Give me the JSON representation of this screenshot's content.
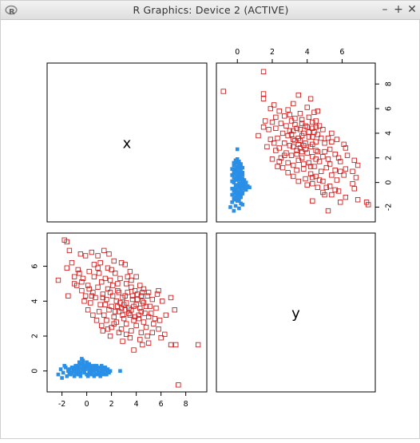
{
  "window": {
    "title": "R Graphics: Device 2 (ACTIVE)",
    "controls": {
      "minimize": "–",
      "maximize": "+",
      "close": "✕"
    },
    "icon": "r-logo-icon"
  },
  "chart_data": {
    "type": "scatter",
    "layout": "pairs",
    "variables": [
      "x",
      "y"
    ],
    "x_axis": {
      "range": [
        -3.2,
        9.7
      ],
      "ticks": [
        -2,
        0,
        2,
        4,
        6,
        8
      ],
      "tick_labels": [
        "-2",
        "0",
        "2",
        "4",
        "6",
        "8"
      ]
    },
    "y_axis": {
      "range": [
        -1.2,
        7.9
      ],
      "ticks": [
        0,
        2,
        4,
        6
      ],
      "tick_labels": [
        "0",
        "2",
        "4",
        "6"
      ]
    },
    "top_axis": {
      "range": [
        -1.2,
        7.9
      ],
      "ticks": [
        0,
        2,
        4,
        6
      ],
      "tick_labels": [
        "0",
        "2",
        "4",
        "6"
      ]
    },
    "right_axis": {
      "range": [
        -3.2,
        9.7
      ],
      "ticks": [
        -2,
        0,
        2,
        4,
        6,
        8
      ],
      "tick_labels": [
        "-2",
        "0",
        "2",
        "4",
        "6",
        "8"
      ]
    },
    "series": [
      {
        "marker": "open-square",
        "color": "#d22020",
        "points": [
          [
            -1.8,
            7.5
          ],
          [
            -1.6,
            7.4
          ],
          [
            -1.4,
            6.9
          ],
          [
            -2.3,
            5.2
          ],
          [
            -1.2,
            6.2
          ],
          [
            -1.6,
            5.9
          ],
          [
            -0.5,
            6.7
          ],
          [
            -0.1,
            6.6
          ],
          [
            0.4,
            6.8
          ],
          [
            0.9,
            6.6
          ],
          [
            1.4,
            6.9
          ],
          [
            1.8,
            6.7
          ],
          [
            2.2,
            6.3
          ],
          [
            2.8,
            6.2
          ],
          [
            3.1,
            6.1
          ],
          [
            3.5,
            5.7
          ],
          [
            -1.0,
            5.4
          ],
          [
            -0.6,
            5.6
          ],
          [
            -0.3,
            5.3
          ],
          [
            0.2,
            5.7
          ],
          [
            0.6,
            5.4
          ],
          [
            1.0,
            5.6
          ],
          [
            1.5,
            5.3
          ],
          [
            1.9,
            5.2
          ],
          [
            2.3,
            5.6
          ],
          [
            2.7,
            5.3
          ],
          [
            3.2,
            5.0
          ],
          [
            3.6,
            5.2
          ],
          [
            4.0,
            5.4
          ],
          [
            4.3,
            4.9
          ],
          [
            -0.8,
            4.9
          ],
          [
            -0.4,
            4.6
          ],
          [
            0.1,
            4.9
          ],
          [
            0.5,
            4.5
          ],
          [
            0.9,
            4.8
          ],
          [
            1.3,
            4.4
          ],
          [
            1.7,
            4.7
          ],
          [
            2.1,
            4.3
          ],
          [
            2.5,
            4.6
          ],
          [
            2.9,
            4.2
          ],
          [
            3.3,
            4.5
          ],
          [
            3.7,
            4.1
          ],
          [
            4.1,
            4.4
          ],
          [
            4.5,
            4.0
          ],
          [
            4.9,
            4.3
          ],
          [
            5.3,
            4.1
          ],
          [
            5.7,
            4.4
          ],
          [
            6.1,
            4.0
          ],
          [
            -1.5,
            4.3
          ],
          [
            -0.2,
            4.0
          ],
          [
            0.3,
            3.9
          ],
          [
            0.7,
            4.2
          ],
          [
            1.1,
            3.8
          ],
          [
            1.6,
            4.1
          ],
          [
            2.0,
            3.7
          ],
          [
            2.4,
            4.0
          ],
          [
            2.8,
            3.6
          ],
          [
            3.2,
            3.9
          ],
          [
            3.6,
            3.5
          ],
          [
            4.0,
            3.8
          ],
          [
            4.4,
            3.4
          ],
          [
            4.8,
            3.7
          ],
          [
            5.2,
            3.3
          ],
          [
            5.6,
            3.6
          ],
          [
            1.0,
            3.4
          ],
          [
            1.4,
            3.2
          ],
          [
            1.8,
            3.5
          ],
          [
            2.2,
            3.1
          ],
          [
            2.6,
            3.4
          ],
          [
            3.0,
            3.0
          ],
          [
            3.4,
            3.3
          ],
          [
            3.8,
            2.9
          ],
          [
            4.2,
            3.2
          ],
          [
            4.6,
            2.8
          ],
          [
            5.0,
            3.1
          ],
          [
            5.4,
            2.7
          ],
          [
            0.8,
            2.9
          ],
          [
            1.2,
            2.6
          ],
          [
            1.6,
            2.9
          ],
          [
            2.0,
            2.5
          ],
          [
            2.4,
            2.8
          ],
          [
            2.8,
            2.4
          ],
          [
            3.2,
            2.7
          ],
          [
            3.6,
            2.3
          ],
          [
            4.0,
            2.6
          ],
          [
            4.4,
            2.2
          ],
          [
            4.8,
            2.5
          ],
          [
            5.3,
            2.2
          ],
          [
            5.8,
            2.4
          ],
          [
            6.3,
            2.1
          ],
          [
            1.3,
            2.3
          ],
          [
            1.9,
            2.0
          ],
          [
            2.6,
            2.2
          ],
          [
            3.5,
            1.9
          ],
          [
            4.3,
            1.8
          ],
          [
            5.0,
            1.6
          ],
          [
            6.0,
            1.9
          ],
          [
            6.8,
            1.5
          ],
          [
            7.2,
            1.5
          ],
          [
            3.8,
            1.2
          ],
          [
            4.5,
            1.5
          ],
          [
            2.9,
            1.7
          ],
          [
            9.0,
            1.5
          ],
          [
            7.4,
            -0.8
          ],
          [
            0.1,
            3.5
          ],
          [
            0.5,
            3.2
          ],
          [
            -0.1,
            4.3
          ],
          [
            1.2,
            5.1
          ],
          [
            2.5,
            5.0
          ],
          [
            3.9,
            4.6
          ],
          [
            4.6,
            4.7
          ],
          [
            5.0,
            4.5
          ],
          [
            3.4,
            3.6
          ],
          [
            3.0,
            3.8
          ],
          [
            2.7,
            3.9
          ],
          [
            3.8,
            3.7
          ],
          [
            4.3,
            3.6
          ],
          [
            2.1,
            4.9
          ],
          [
            1.7,
            5.9
          ],
          [
            0.6,
            6.1
          ],
          [
            -0.7,
            5.8
          ],
          [
            3.1,
            4.3
          ],
          [
            4.7,
            3.3
          ],
          [
            5.5,
            3.0
          ],
          [
            6.4,
            3.2
          ],
          [
            5.9,
            2.9
          ],
          [
            2.3,
            3.4
          ],
          [
            1.5,
            3.8
          ],
          [
            0.4,
            4.3
          ],
          [
            -0.4,
            5.1
          ],
          [
            3.6,
            4.8
          ],
          [
            4.1,
            4.1
          ],
          [
            4.5,
            4.5
          ],
          [
            2.0,
            5.8
          ],
          [
            1.1,
            6.2
          ],
          [
            3.3,
            5.4
          ],
          [
            5.8,
            4.6
          ],
          [
            6.8,
            4.2
          ],
          [
            7.1,
            3.5
          ],
          [
            4.9,
            2.0
          ],
          [
            3.2,
            2.1
          ],
          [
            2.2,
            2.7
          ],
          [
            1.7,
            2.4
          ],
          [
            3.9,
            3.1
          ],
          [
            4.6,
            3.9
          ],
          [
            5.1,
            3.7
          ],
          [
            3.5,
            3.2
          ],
          [
            2.9,
            3.2
          ],
          [
            2.5,
            3.7
          ],
          [
            4.2,
            3.0
          ],
          [
            3.7,
            4.3
          ],
          [
            1.3,
            4.2
          ],
          [
            0.2,
            4.7
          ],
          [
            -1.0,
            5.0
          ],
          [
            4.4,
            4.3
          ],
          [
            3.1,
            3.5
          ],
          [
            2.6,
            4.5
          ],
          [
            1.9,
            4.5
          ],
          [
            0.9,
            5.9
          ]
        ]
      },
      {
        "marker": "filled-square",
        "color": "#2a8fe6",
        "points": [
          [
            -2.1,
            0.1
          ],
          [
            -1.9,
            -0.1
          ],
          [
            -1.7,
            0.2
          ],
          [
            -1.5,
            0.0
          ],
          [
            -1.4,
            0.1
          ],
          [
            -1.3,
            -0.2
          ],
          [
            -1.2,
            0.2
          ],
          [
            -1.1,
            0.0
          ],
          [
            -1.0,
            0.1
          ],
          [
            -0.9,
            -0.1
          ],
          [
            -0.8,
            0.3
          ],
          [
            -0.7,
            0.0
          ],
          [
            -0.6,
            0.2
          ],
          [
            -0.5,
            -0.1
          ],
          [
            -0.4,
            0.1
          ],
          [
            -0.3,
            0.4
          ],
          [
            -0.2,
            0.0
          ],
          [
            -0.1,
            0.2
          ],
          [
            0.0,
            -0.2
          ],
          [
            0.1,
            0.3
          ],
          [
            0.2,
            0.1
          ],
          [
            0.3,
            -0.1
          ],
          [
            0.4,
            0.2
          ],
          [
            0.5,
            0.0
          ],
          [
            0.6,
            0.3
          ],
          [
            0.7,
            -0.2
          ],
          [
            0.8,
            0.1
          ],
          [
            0.9,
            0.0
          ],
          [
            1.0,
            0.2
          ],
          [
            1.1,
            -0.1
          ],
          [
            1.2,
            0.1
          ],
          [
            1.3,
            0.0
          ],
          [
            1.4,
            -0.2
          ],
          [
            1.5,
            0.2
          ],
          [
            1.6,
            0.0
          ],
          [
            1.7,
            0.1
          ],
          [
            1.8,
            -0.1
          ],
          [
            -0.6,
            0.5
          ],
          [
            -0.3,
            0.6
          ],
          [
            0.0,
            0.5
          ],
          [
            -0.4,
            0.7
          ],
          [
            0.2,
            0.4
          ],
          [
            -1.6,
            -0.3
          ],
          [
            -1.0,
            -0.3
          ],
          [
            -0.5,
            -0.3
          ],
          [
            0.1,
            -0.3
          ],
          [
            0.6,
            -0.3
          ],
          [
            1.1,
            -0.3
          ],
          [
            -2.3,
            -0.2
          ],
          [
            -1.8,
            0.3
          ],
          [
            -0.9,
            0.3
          ],
          [
            0.3,
            0.3
          ],
          [
            0.8,
            0.3
          ],
          [
            1.3,
            0.2
          ],
          [
            2.7,
            0.0
          ],
          [
            -1.2,
            -0.1
          ],
          [
            -0.7,
            -0.2
          ],
          [
            -0.2,
            -0.1
          ],
          [
            0.4,
            -0.2
          ],
          [
            0.9,
            -0.2
          ],
          [
            1.6,
            -0.2
          ],
          [
            -0.1,
            0.1
          ],
          [
            0.5,
            0.1
          ],
          [
            1.0,
            -0.1
          ],
          [
            -0.8,
            0.1
          ],
          [
            -1.4,
            -0.1
          ],
          [
            0.7,
            0.2
          ],
          [
            1.4,
            0.1
          ],
          [
            -0.3,
            0.2
          ],
          [
            0.2,
            -0.1
          ],
          [
            -2.0,
            -0.4
          ],
          [
            -0.5,
            0.4
          ],
          [
            0.0,
            0.3
          ],
          [
            0.6,
            0.0
          ],
          [
            -1.1,
            0.2
          ],
          [
            1.2,
            0.3
          ],
          [
            -0.2,
            0.3
          ],
          [
            0.3,
            0.0
          ],
          [
            -0.6,
            -0.1
          ],
          [
            1.9,
            0.0
          ]
        ]
      }
    ],
    "panel_labels": [
      "x",
      "y"
    ]
  }
}
